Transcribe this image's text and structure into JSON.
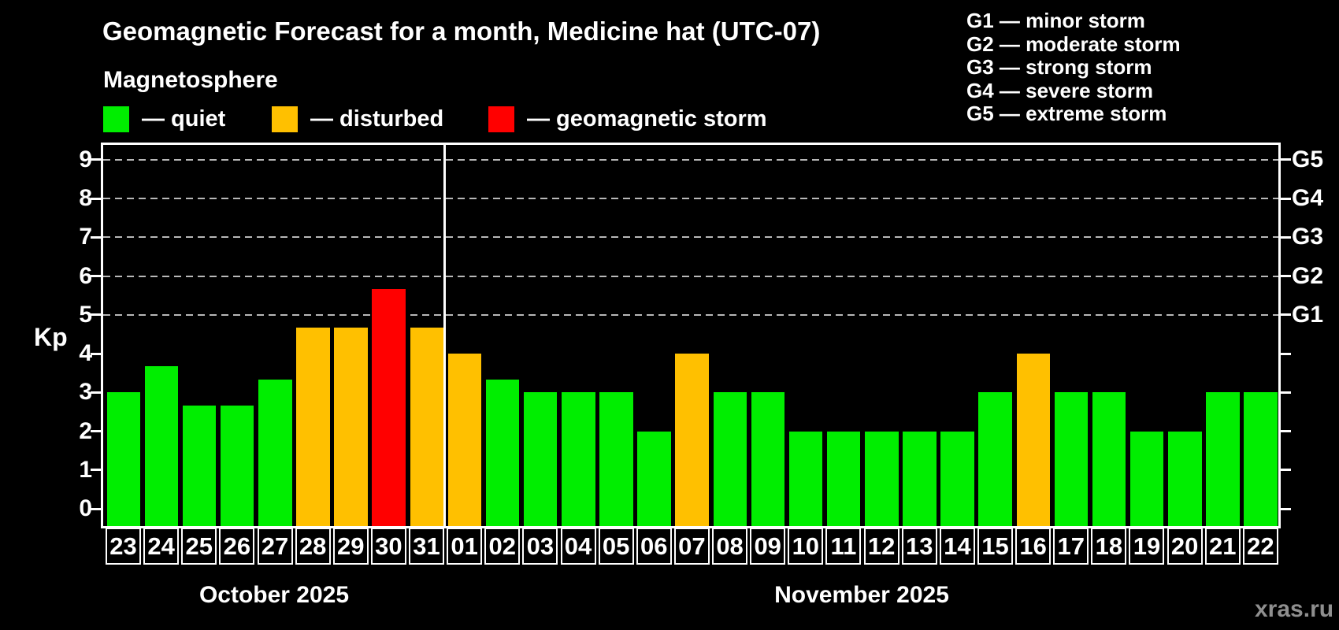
{
  "header": {
    "title": "Geomagnetic Forecast for a month, Medicine hat (UTC-07)",
    "subtitle": "Magnetosphere"
  },
  "status_legend": [
    {
      "key": "quiet",
      "label": "— quiet",
      "color": "#00ee00"
    },
    {
      "key": "disturbed",
      "label": "— disturbed",
      "color": "#ffc000"
    },
    {
      "key": "storm",
      "label": "— geomagnetic storm",
      "color": "#ff0000"
    }
  ],
  "g_scale_legend": [
    {
      "label": "G1 — minor storm"
    },
    {
      "label": "G2 — moderate storm"
    },
    {
      "label": "G3 — strong storm"
    },
    {
      "label": "G4 — severe storm"
    },
    {
      "label": "G5 — extreme storm"
    }
  ],
  "watermark": "xras.ru",
  "chart_data": {
    "type": "bar",
    "title": "Geomagnetic Forecast for a month, Medicine hat (UTC-07)",
    "ylabel": "Kp",
    "ylim": [
      -0.45,
      9.38
    ],
    "y_ticks": [
      0,
      1,
      2,
      3,
      4,
      5,
      6,
      7,
      8,
      9
    ],
    "gridlines_at": [
      5,
      6,
      7,
      8,
      9
    ],
    "grid_style": "dashed",
    "legend_position": "top",
    "right_axis": [
      {
        "kp": 5,
        "label": "G1"
      },
      {
        "kp": 6,
        "label": "G2"
      },
      {
        "kp": 7,
        "label": "G3"
      },
      {
        "kp": 8,
        "label": "G4"
      },
      {
        "kp": 9,
        "label": "G5"
      }
    ],
    "months": [
      {
        "label": "October 2025",
        "days_count": 9
      },
      {
        "label": "November 2025",
        "days_count": 22
      }
    ],
    "status_colors": {
      "quiet": "#00ee00",
      "disturbed": "#ffc000",
      "storm": "#ff0000"
    },
    "bars": [
      {
        "month": "October 2025",
        "day": "23",
        "kp": 3.0,
        "status": "quiet"
      },
      {
        "month": "October 2025",
        "day": "24",
        "kp": 3.67,
        "status": "quiet"
      },
      {
        "month": "October 2025",
        "day": "25",
        "kp": 2.67,
        "status": "quiet"
      },
      {
        "month": "October 2025",
        "day": "26",
        "kp": 2.67,
        "status": "quiet"
      },
      {
        "month": "October 2025",
        "day": "27",
        "kp": 3.33,
        "status": "quiet"
      },
      {
        "month": "October 2025",
        "day": "28",
        "kp": 4.67,
        "status": "disturbed"
      },
      {
        "month": "October 2025",
        "day": "29",
        "kp": 4.67,
        "status": "disturbed"
      },
      {
        "month": "October 2025",
        "day": "30",
        "kp": 5.67,
        "status": "storm"
      },
      {
        "month": "October 2025",
        "day": "31",
        "kp": 4.67,
        "status": "disturbed"
      },
      {
        "month": "November 2025",
        "day": "01",
        "kp": 4.0,
        "status": "disturbed"
      },
      {
        "month": "November 2025",
        "day": "02",
        "kp": 3.33,
        "status": "quiet"
      },
      {
        "month": "November 2025",
        "day": "03",
        "kp": 3.0,
        "status": "quiet"
      },
      {
        "month": "November 2025",
        "day": "04",
        "kp": 3.0,
        "status": "quiet"
      },
      {
        "month": "November 2025",
        "day": "05",
        "kp": 3.0,
        "status": "quiet"
      },
      {
        "month": "November 2025",
        "day": "06",
        "kp": 2.0,
        "status": "quiet"
      },
      {
        "month": "November 2025",
        "day": "07",
        "kp": 4.0,
        "status": "disturbed"
      },
      {
        "month": "November 2025",
        "day": "08",
        "kp": 3.0,
        "status": "quiet"
      },
      {
        "month": "November 2025",
        "day": "09",
        "kp": 3.0,
        "status": "quiet"
      },
      {
        "month": "November 2025",
        "day": "10",
        "kp": 2.0,
        "status": "quiet"
      },
      {
        "month": "November 2025",
        "day": "11",
        "kp": 2.0,
        "status": "quiet"
      },
      {
        "month": "November 2025",
        "day": "12",
        "kp": 2.0,
        "status": "quiet"
      },
      {
        "month": "November 2025",
        "day": "13",
        "kp": 2.0,
        "status": "quiet"
      },
      {
        "month": "November 2025",
        "day": "14",
        "kp": 2.0,
        "status": "quiet"
      },
      {
        "month": "November 2025",
        "day": "15",
        "kp": 3.0,
        "status": "quiet"
      },
      {
        "month": "November 2025",
        "day": "16",
        "kp": 4.0,
        "status": "disturbed"
      },
      {
        "month": "November 2025",
        "day": "17",
        "kp": 3.0,
        "status": "quiet"
      },
      {
        "month": "November 2025",
        "day": "18",
        "kp": 3.0,
        "status": "quiet"
      },
      {
        "month": "November 2025",
        "day": "19",
        "kp": 2.0,
        "status": "quiet"
      },
      {
        "month": "November 2025",
        "day": "20",
        "kp": 2.0,
        "status": "quiet"
      },
      {
        "month": "November 2025",
        "day": "21",
        "kp": 3.0,
        "status": "quiet"
      },
      {
        "month": "November 2025",
        "day": "22",
        "kp": 3.0,
        "status": "quiet"
      }
    ]
  }
}
